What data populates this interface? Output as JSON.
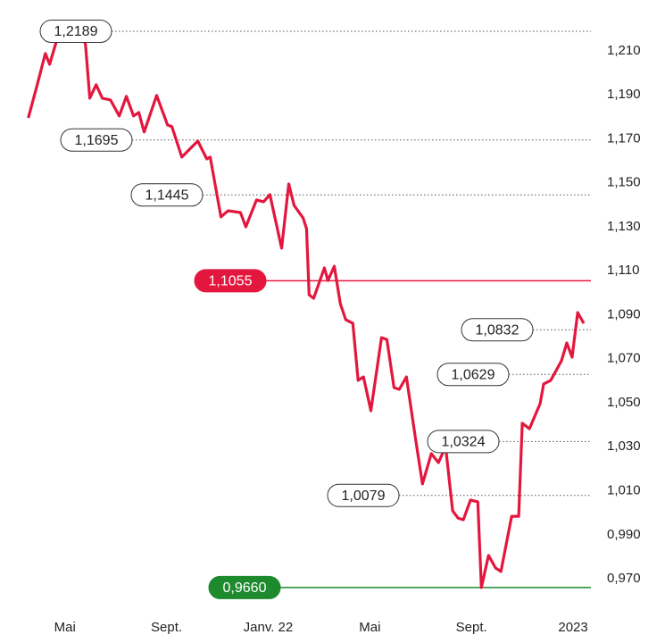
{
  "chart_data": {
    "type": "line",
    "color": "#e3173e",
    "x": [
      -1.44,
      -1.09,
      -0.77,
      -0.6,
      -0.25,
      0.18,
      0.67,
      0.81,
      0.98,
      1.23,
      1.47,
      1.79,
      2.14,
      2.42,
      2.7,
      2.91,
      3.12,
      3.61,
      4.04,
      4.21,
      4.6,
      5.23,
      5.58,
      5.72,
      6.14,
      6.42,
      6.91,
      7.12,
      7.54,
      7.82,
      8.07,
      8.53,
      8.81,
      9.02,
      9.37,
      9.51,
      9.61,
      9.79,
      10.21,
      10.35,
      10.6,
      10.84,
      11.05,
      11.33,
      11.54,
      11.75,
      12.04,
      12.46,
      12.67,
      12.95,
      13.16,
      13.44,
      13.79,
      14.07,
      14.42,
      14.7,
      14.98,
      15.26,
      15.47,
      15.68,
      15.96,
      16.25,
      16.39,
      16.67,
      16.95,
      17.16,
      17.58,
      17.86,
      18,
      18.28,
      18.7,
      18.84,
      19.12,
      19.54,
      19.75,
      19.96,
      20.18,
      20.42
    ],
    "values": [
      1.1795,
      1.1946,
      1.2088,
      1.2039,
      1.2177,
      1.2189,
      1.2177,
      1.2128,
      1.1885,
      1.1946,
      1.1885,
      1.1877,
      1.1804,
      1.1893,
      1.1804,
      1.182,
      1.1731,
      1.1897,
      1.1763,
      1.1755,
      1.1617,
      1.169,
      1.1609,
      1.1617,
      1.1345,
      1.1373,
      1.1365,
      1.13,
      1.1422,
      1.1414,
      1.1446,
      1.1203,
      1.1495,
      1.1397,
      1.1341,
      1.1292,
      1.0991,
      1.0975,
      1.1113,
      1.1056,
      1.1121,
      1.095,
      1.0878,
      1.0861,
      1.0602,
      1.0618,
      1.0464,
      1.0796,
      1.0788,
      1.0569,
      1.0561,
      1.0618,
      1.0342,
      1.0131,
      1.0269,
      1.0228,
      1.0301,
      1.0009,
      0.9976,
      0.9968,
      1.0058,
      1.005,
      0.966,
      0.9806,
      0.9749,
      0.9733,
      0.9984,
      0.9984,
      1.0407,
      1.0382,
      1.0496,
      1.0585,
      1.0602,
      1.0691,
      1.0772,
      1.0707,
      1.091,
      1.0861
    ],
    "xlim": [
      -1.5,
      20.7
    ],
    "xticks": [
      {
        "value": 0,
        "label": "Mai"
      },
      {
        "value": 4,
        "label": "Sept."
      },
      {
        "value": 8,
        "label": "Janv. 22"
      },
      {
        "value": 12,
        "label": "Mai"
      },
      {
        "value": 16,
        "label": "Sept."
      },
      {
        "value": 20,
        "label": "2023"
      }
    ],
    "ylim": [
      0.955,
      1.225
    ],
    "yticks": [
      {
        "value": 0.97,
        "label": "0,970"
      },
      {
        "value": 0.99,
        "label": "0,990"
      },
      {
        "value": 1.01,
        "label": "1,010"
      },
      {
        "value": 1.03,
        "label": "1,030"
      },
      {
        "value": 1.05,
        "label": "1,050"
      },
      {
        "value": 1.07,
        "label": "1,070"
      },
      {
        "value": 1.09,
        "label": "1,090"
      },
      {
        "value": 1.11,
        "label": "1,110"
      },
      {
        "value": 1.13,
        "label": "1,130"
      },
      {
        "value": 1.15,
        "label": "1,150"
      },
      {
        "value": 1.17,
        "label": "1,170"
      },
      {
        "value": 1.19,
        "label": "1,190"
      },
      {
        "value": 1.21,
        "label": "1,210"
      }
    ],
    "annotations": [
      {
        "value": 1.2189,
        "label": "1,2189"
      },
      {
        "value": 1.1695,
        "label": "1,1695"
      },
      {
        "value": 1.1445,
        "label": "1,1445"
      },
      {
        "value": 1.1055,
        "label": "1,1055",
        "color": "#e3173e"
      },
      {
        "value": 1.0832,
        "label": "1,0832"
      },
      {
        "value": 1.0629,
        "label": "1,0629"
      },
      {
        "value": 1.0324,
        "label": "1,0324"
      },
      {
        "value": 1.0079,
        "label": "1,0079"
      },
      {
        "value": 0.966,
        "label": "0,9660",
        "color": "#1e8a2e"
      }
    ]
  }
}
